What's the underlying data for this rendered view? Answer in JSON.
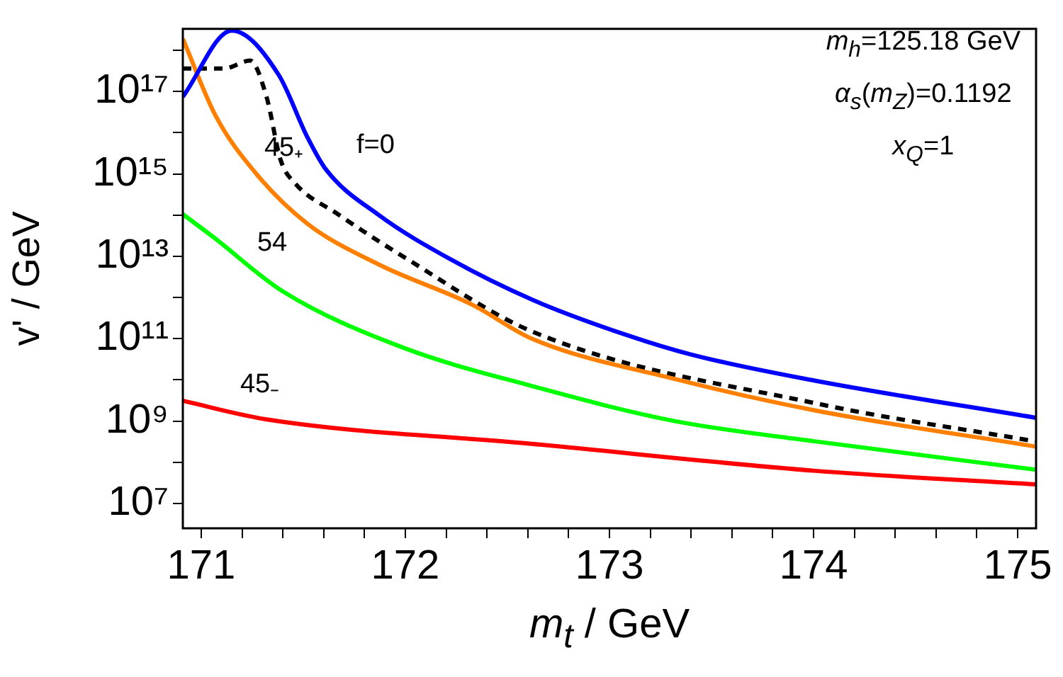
{
  "chart_data": {
    "type": "line",
    "xlabel": "m$_{t}$ / GeV",
    "ylabel": "v' / GeV",
    "log": "y",
    "grid": false,
    "legend": false,
    "marker": "none",
    "xlim": [
      170.91,
      175.09
    ],
    "ylim": [
      2500000.0,
      3.3e+18
    ],
    "xticks": [
      171,
      {
        "value": 171.2,
        "label": null
      },
      {
        "value": 171.4,
        "label": null
      },
      {
        "value": 171.6,
        "label": null
      },
      {
        "value": 171.8,
        "label": null
      },
      172,
      {
        "value": 172.2,
        "label": null
      },
      {
        "value": 172.4,
        "label": null
      },
      {
        "value": 172.6,
        "label": null
      },
      {
        "value": 172.8,
        "label": null
      },
      173,
      {
        "value": 173.2,
        "label": null
      },
      {
        "value": 173.4,
        "label": null
      },
      {
        "value": 173.6,
        "label": null
      },
      {
        "value": 173.8,
        "label": null
      },
      174,
      {
        "value": 174.2,
        "label": null
      },
      {
        "value": 174.4,
        "label": null
      },
      {
        "value": 174.6,
        "label": null
      },
      {
        "value": 174.8,
        "label": null
      },
      175
    ],
    "yticks": [
      {
        "value": 10000000.0,
        "label": "10⁷"
      },
      {
        "value": 100000000.0,
        "label": null
      },
      {
        "value": 1000000000.0,
        "label": "10⁹"
      },
      {
        "value": 10000000000.0,
        "label": null
      },
      {
        "value": 100000000000.0,
        "label": "10¹¹"
      },
      {
        "value": 1000000000000.0,
        "label": null
      },
      {
        "value": 10000000000000.0,
        "label": "10¹³"
      },
      {
        "value": 100000000000000.0,
        "label": null
      },
      {
        "value": 1000000000000000.0,
        "label": "10¹⁵"
      },
      {
        "value": 1e+16,
        "label": null
      },
      {
        "value": 1e+17,
        "label": "10¹⁷"
      },
      {
        "value": 1e+18,
        "label": null
      }
    ],
    "series": [
      {
        "name": "f=0",
        "color": "#0000ff",
        "line_style": "solid",
        "x": [
          170.91,
          171.15,
          171.38,
          171.52,
          171.61,
          171.87,
          172.22,
          172.62,
          173.09,
          173.41,
          174.01,
          175.09
        ],
        "values": [
          7.4e+16,
          3e+18,
          2.5e+17,
          7800000000000000.0,
          1300000000000000.0,
          100000000000000.0,
          8500000000000.0,
          890000000000.0,
          120000000000.0,
          40000000000.0,
          9500000000.0,
          1200000000.0
        ]
      },
      {
        "color": "#ff8000",
        "line_style": "solid",
        "x": [
          170.91,
          171.07,
          171.27,
          171.52,
          171.87,
          172.33,
          172.62,
          173.32,
          174.01,
          175.09
        ],
        "values": [
          1.9e+18,
          2.6e+16,
          1000000000000000.0,
          62000000000000.0,
          6300000000000.0,
          660000000000.0,
          100000000000.0,
          10500000000.0,
          1800000000.0,
          240000000.0
        ]
      },
      {
        "name": "45₊",
        "color": "#000000",
        "line_style": "dashed",
        "x": [
          170.91,
          171.11,
          171.24,
          171.32,
          171.39,
          171.46,
          171.67,
          172.01,
          172.62,
          174.01,
          175.09
        ],
        "values": [
          3.6e+17,
          3.6e+17,
          5.6e+17,
          7.4e+16,
          2100000000000000.0,
          590000000000000.0,
          105000000000000.0,
          8500000000000.0,
          150000000000.0,
          2700000000.0,
          320000000.0
        ]
      },
      {
        "name": "54",
        "color": "#00ff00",
        "line_style": "solid",
        "x": [
          170.91,
          171.06,
          171.4,
          171.98,
          172.62,
          173.32,
          174.01,
          175.09
        ],
        "values": [
          105000000000000.0,
          29000000000000.0,
          1400000000000.0,
          63000000000.0,
          7100000000.0,
          1000000000.0,
          320000000.0,
          66000000.0
        ]
      },
      {
        "name": "45₋",
        "color": "#ff0000",
        "line_style": "solid",
        "x": [
          170.91,
          171.32,
          172.62,
          174.01,
          175.09
        ],
        "values": [
          3100000000.0,
          1100000000.0,
          280000000.0,
          62000000.0,
          29000000.0
        ]
      }
    ],
    "annotations": [
      "m$_{h}$=125.18 GeV",
      "α$_{s}$(m$_{Z}$)=0.1192",
      "x$_{Q}$=1"
    ]
  }
}
